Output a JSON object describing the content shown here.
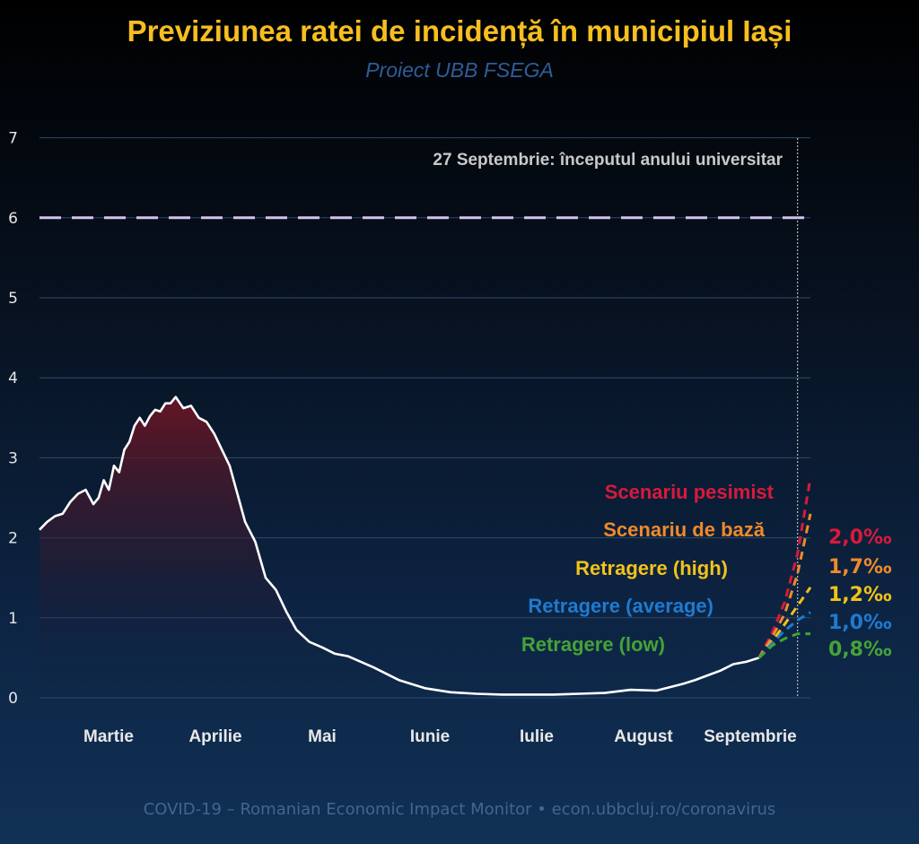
{
  "title": "Previziunea ratei de incidență în municipiul Iași",
  "subtitle": "Proiect UBB FSEGA",
  "footer": "COVID-19 – Romanian Economic Impact Monitor • econ.ubbcluj.ro/coronavirus",
  "annotation": "27 Septembrie: începutul anului universitar",
  "colors": {
    "history": "#ffffff",
    "fill_top": "#6a1525",
    "threshold": "#d3c2ee",
    "pesimist": "#d71a3c",
    "baza": "#ef8a2a",
    "high": "#f2c21b",
    "average": "#1e7bd1",
    "low": "#45a336"
  },
  "chart_data": {
    "type": "line",
    "ylim": [
      0,
      7
    ],
    "y_ticks": [
      "0",
      "1",
      "2",
      "3",
      "4",
      "5",
      "6",
      "7"
    ],
    "x_ticks": [
      "Martie",
      "Aprilie",
      "Mai",
      "Iunie",
      "Iulie",
      "August",
      "Septembrie"
    ],
    "x_unit": "weeks from start of observed period",
    "threshold": 6,
    "marker_x": 29.5,
    "history": {
      "x": [
        0,
        0.3,
        0.6,
        0.9,
        1.2,
        1.5,
        1.8,
        2.1,
        2.3,
        2.5,
        2.7,
        2.9,
        3.1,
        3.3,
        3.5,
        3.7,
        3.9,
        4.1,
        4.3,
        4.5,
        4.7,
        4.9,
        5.1,
        5.3,
        5.6,
        5.9,
        6.2,
        6.5,
        6.8,
        7.1,
        7.4,
        7.7,
        8.0,
        8.4,
        8.8,
        9.2,
        9.6,
        10.0,
        10.5,
        11.0,
        11.5,
        12.0,
        13.0,
        14.0,
        15.0,
        16.0,
        17.0,
        18.0,
        19.0,
        20.0,
        21.0,
        22.0,
        23.0,
        24.0,
        25.0,
        25.5,
        26.0,
        26.5,
        27.0,
        27.5,
        28.0
      ],
      "values": [
        2.1,
        2.2,
        2.27,
        2.3,
        2.45,
        2.55,
        2.6,
        2.42,
        2.5,
        2.72,
        2.6,
        2.9,
        2.82,
        3.1,
        3.2,
        3.4,
        3.5,
        3.4,
        3.52,
        3.6,
        3.58,
        3.68,
        3.68,
        3.76,
        3.62,
        3.65,
        3.5,
        3.45,
        3.3,
        3.1,
        2.9,
        2.55,
        2.2,
        1.95,
        1.5,
        1.35,
        1.08,
        0.85,
        0.7,
        0.63,
        0.55,
        0.52,
        0.38,
        0.22,
        0.12,
        0.07,
        0.05,
        0.04,
        0.04,
        0.04,
        0.05,
        0.06,
        0.1,
        0.09,
        0.17,
        0.22,
        0.28,
        0.34,
        0.42,
        0.45,
        0.5
      ]
    },
    "series": [
      {
        "name": "Scenariu pesimist",
        "color_key": "pesimist",
        "rate": "2,0‰",
        "x": [
          28.0,
          28.5,
          29.0,
          29.5,
          30.0
        ],
        "values": [
          0.5,
          0.8,
          1.2,
          1.8,
          2.75
        ]
      },
      {
        "name": "Scenariu de bază",
        "color_key": "baza",
        "rate": "1,7‰",
        "x": [
          28.0,
          28.5,
          29.0,
          29.5,
          30.0
        ],
        "values": [
          0.5,
          0.75,
          1.05,
          1.55,
          2.3
        ]
      },
      {
        "name": "Retragere (high)",
        "color_key": "high",
        "rate": "1,2‰",
        "x": [
          28.0,
          28.5,
          29.0,
          29.5,
          30.0
        ],
        "values": [
          0.5,
          0.7,
          0.92,
          1.15,
          1.38
        ]
      },
      {
        "name": "Retragere (average)",
        "color_key": "average",
        "rate": "1,0‰",
        "x": [
          28.0,
          28.5,
          29.0,
          29.5,
          30.0
        ],
        "values": [
          0.5,
          0.68,
          0.84,
          0.97,
          1.07
        ]
      },
      {
        "name": "Retragere (low)",
        "color_key": "low",
        "rate": "0,8‰",
        "x": [
          28.0,
          28.5,
          29.0,
          29.5,
          30.0
        ],
        "values": [
          0.5,
          0.65,
          0.74,
          0.8,
          0.8
        ]
      }
    ]
  }
}
